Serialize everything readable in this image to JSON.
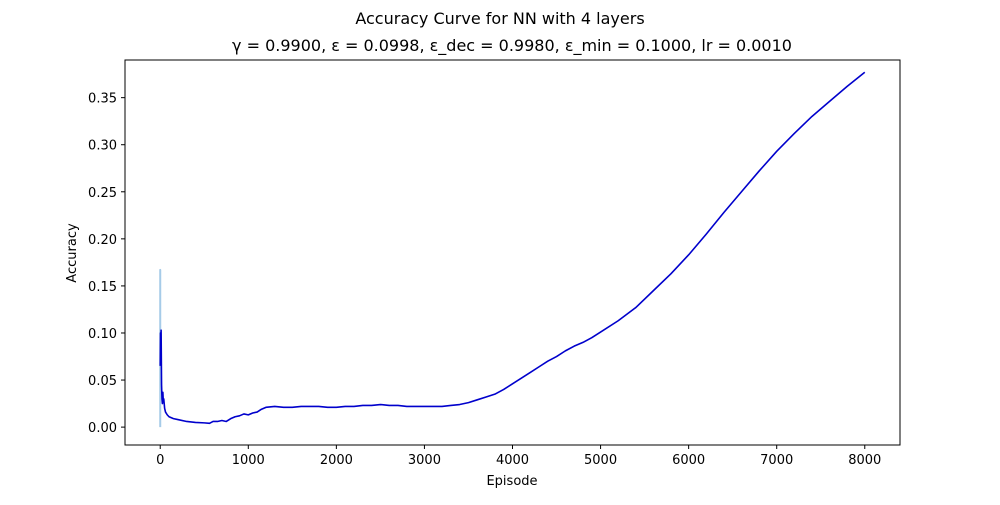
{
  "chart_data": {
    "type": "line",
    "suptitle": "Accuracy Curve for NN with 4 layers",
    "title": "γ = 0.9900, ε = 0.0998, ε_dec = 0.9980, ε_min = 0.1000, lr = 0.0010",
    "xlabel": "Episode",
    "ylabel": "Accuracy",
    "xlim": [
      -400,
      8400
    ],
    "ylim": [
      -0.019,
      0.39
    ],
    "xticks": [
      0,
      1000,
      2000,
      3000,
      4000,
      5000,
      6000,
      7000,
      8000
    ],
    "xtick_labels": [
      "0",
      "1000",
      "2000",
      "3000",
      "4000",
      "5000",
      "6000",
      "7000",
      "8000"
    ],
    "yticks": [
      0.0,
      0.05,
      0.1,
      0.15,
      0.2,
      0.25,
      0.3,
      0.35
    ],
    "ytick_labels": [
      "0.00",
      "0.05",
      "0.10",
      "0.15",
      "0.20",
      "0.25",
      "0.30",
      "0.35"
    ],
    "grid": false,
    "colors": {
      "raw": "#a6cbe8",
      "smoothed": "#0000cc"
    },
    "series": [
      {
        "style": "raw",
        "x": [
          0,
          0,
          0,
          0
        ],
        "y": [
          0.0,
          0.167,
          0.02,
          0.09
        ]
      },
      {
        "style": "smoothed",
        "x": [
          0,
          3,
          6,
          10,
          15,
          20,
          25,
          30,
          35,
          40,
          50,
          60,
          80,
          100,
          150,
          200,
          300,
          400,
          500,
          560,
          600,
          650,
          700,
          750,
          800,
          850,
          900,
          950,
          1000,
          1050,
          1100,
          1150,
          1200,
          1300,
          1400,
          1500,
          1600,
          1700,
          1800,
          1900,
          2000,
          2100,
          2200,
          2300,
          2400,
          2500,
          2600,
          2700,
          2800,
          2900,
          3000,
          3100,
          3200,
          3300,
          3400,
          3500,
          3600,
          3700,
          3800,
          3900,
          4000,
          4100,
          4200,
          4300,
          4400,
          4500,
          4600,
          4700,
          4800,
          4900,
          5000,
          5200,
          5400,
          5600,
          5800,
          6000,
          6200,
          6400,
          6600,
          6800,
          7000,
          7200,
          7400,
          7600,
          7800,
          8000
        ],
        "y": [
          0.065,
          0.1,
          0.085,
          0.103,
          0.045,
          0.03,
          0.025,
          0.037,
          0.027,
          0.03,
          0.02,
          0.016,
          0.013,
          0.011,
          0.009,
          0.008,
          0.006,
          0.005,
          0.0045,
          0.004,
          0.006,
          0.006,
          0.007,
          0.006,
          0.009,
          0.011,
          0.012,
          0.014,
          0.013,
          0.015,
          0.016,
          0.019,
          0.021,
          0.022,
          0.021,
          0.021,
          0.022,
          0.022,
          0.022,
          0.021,
          0.021,
          0.022,
          0.022,
          0.023,
          0.023,
          0.024,
          0.023,
          0.023,
          0.022,
          0.022,
          0.022,
          0.022,
          0.022,
          0.023,
          0.024,
          0.026,
          0.029,
          0.032,
          0.035,
          0.04,
          0.046,
          0.052,
          0.058,
          0.064,
          0.07,
          0.075,
          0.081,
          0.086,
          0.09,
          0.095,
          0.101,
          0.113,
          0.127,
          0.145,
          0.163,
          0.183,
          0.205,
          0.228,
          0.25,
          0.272,
          0.293,
          0.312,
          0.33,
          0.346,
          0.362,
          0.377
        ]
      }
    ]
  }
}
